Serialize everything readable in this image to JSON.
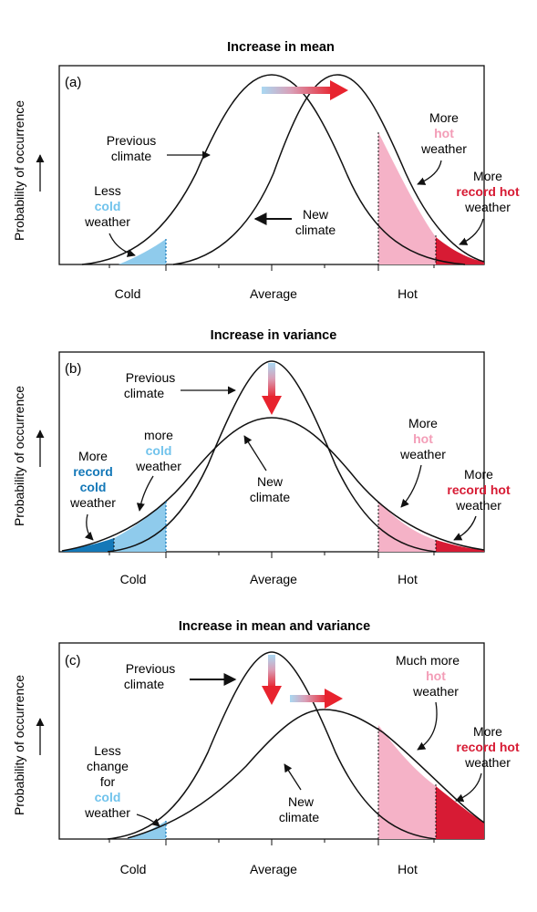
{
  "ylabel": "Probability of occurrence",
  "x_ticks": [
    "Cold",
    "Average",
    "Hot"
  ],
  "colors": {
    "cold_light": "#8fcbec",
    "cold_dark": "#1478b8",
    "cold_text": "#71c3ec",
    "cold_dark_text": "#1478b8",
    "hot_light": "#f5b2c7",
    "hot_dark": "#d71b34",
    "hot_text": "#f39db7",
    "record_hot_text": "#d71b34",
    "arrow": "#e8232e"
  },
  "panels": [
    {
      "title": "Increase in mean",
      "tag": "(a)",
      "labels": {
        "previous": [
          "Previous",
          "climate"
        ],
        "new": [
          "New",
          "climate"
        ],
        "cold": [
          "Less",
          "cold",
          "weather"
        ],
        "hot": [
          "More",
          "hot",
          "weather"
        ],
        "record_hot": [
          "More",
          "record hot",
          "weather"
        ]
      }
    },
    {
      "title": "Increase in variance",
      "tag": "(b)",
      "labels": {
        "previous": [
          "Previous",
          "climate"
        ],
        "new": [
          "New",
          "climate"
        ],
        "cold": [
          "more",
          "cold",
          "weather"
        ],
        "record_cold": [
          "More",
          "record",
          "cold",
          "weather"
        ],
        "hot": [
          "More",
          "hot",
          "weather"
        ],
        "record_hot": [
          "More",
          "record hot",
          "weather"
        ]
      }
    },
    {
      "title": "Increase in mean and variance",
      "tag": "(c)",
      "labels": {
        "previous": [
          "Previous",
          "climate"
        ],
        "new": [
          "New",
          "climate"
        ],
        "cold": [
          "Less",
          "change",
          "for",
          "cold",
          "weather"
        ],
        "hot": [
          "Much more",
          "hot",
          "weather"
        ],
        "record_hot": [
          "More",
          "record hot",
          "weather"
        ]
      }
    }
  ]
}
